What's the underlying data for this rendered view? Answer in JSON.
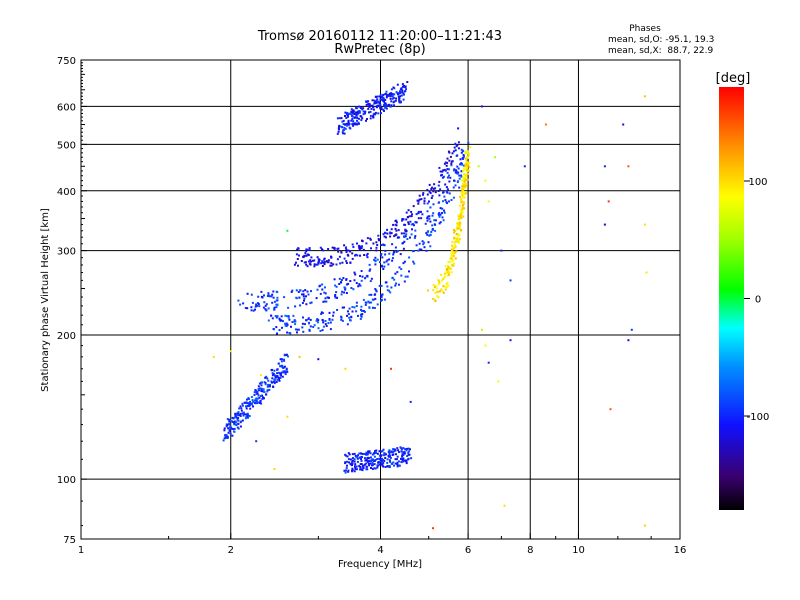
{
  "title": "Tromsø 20160112 11:20:00–11:21:43",
  "subtitle": "RwPretec (8p)",
  "phase_box": {
    "heading": "Phases",
    "line_o": "mean, sd,O: -95.1, 19.3",
    "line_x": "mean, sd,X:  88.7, 22.9"
  },
  "chart_data": {
    "type": "scatter",
    "title": "Tromsø 20160112 11:20:00–11:21:43",
    "subtitle": "RwPretec (8p)",
    "xlabel": "Frequency [MHz]",
    "ylabel": "Stationary phase Virtual Height [km]",
    "x_scale": "log2",
    "y_scale": "log",
    "xlim": [
      1,
      16
    ],
    "ylim": [
      75,
      750
    ],
    "xticks": [
      1,
      2,
      4,
      6,
      8,
      10,
      16
    ],
    "xtick_labels": [
      "1",
      "2",
      "4",
      "6",
      "8",
      "10",
      "16"
    ],
    "yticks": [
      75,
      100,
      200,
      300,
      400,
      500,
      600,
      750
    ],
    "ytick_labels": [
      "75",
      "100",
      "200",
      "300",
      "400",
      "500",
      "600",
      "750"
    ],
    "x_gridlines": [
      2,
      4,
      6,
      8,
      10
    ],
    "y_gridlines": [
      100,
      200,
      300,
      400,
      500,
      600
    ],
    "grid": true,
    "colorbar": {
      "label": "[deg]",
      "range": [
        -180,
        180
      ],
      "ticks": [
        -100,
        0,
        100
      ],
      "tick_labels": [
        "-100",
        "0",
        "100"
      ]
    },
    "traces": [
      {
        "x_range": [
          3.3,
          4.5
        ],
        "h_range": [
          545,
          650
        ],
        "phase": -105,
        "shape": "linear"
      },
      {
        "x_range": [
          2.05,
          6.0
        ],
        "h_range": [
          235,
          500
        ],
        "phase": -95,
        "shape": "cusp"
      },
      {
        "x_range": [
          2.4,
          6.0
        ],
        "h_range": [
          210,
          480
        ],
        "phase": -92,
        "shape": "cusp"
      },
      {
        "x_range": [
          2.7,
          5.8
        ],
        "h_range": [
          290,
          520
        ],
        "phase": -115,
        "shape": "cusp"
      },
      {
        "x_range": [
          4.9,
          6.0
        ],
        "h_range": [
          240,
          480
        ],
        "phase": 95,
        "shape": "steep"
      },
      {
        "x_range": [
          1.95,
          2.6
        ],
        "h_range": [
          125,
          175
        ],
        "phase": -95,
        "shape": "linear"
      },
      {
        "x_range": [
          3.4,
          4.6
        ],
        "h_range": [
          108,
          112
        ],
        "phase": -100,
        "shape": "linear"
      }
    ],
    "scattered_points": [
      {
        "x": 6.3,
        "y": 450,
        "v": 60
      },
      {
        "x": 6.5,
        "y": 420,
        "v": 80
      },
      {
        "x": 6.6,
        "y": 380,
        "v": 90
      },
      {
        "x": 6.8,
        "y": 470,
        "v": 50
      },
      {
        "x": 7.0,
        "y": 300,
        "v": -100
      },
      {
        "x": 7.3,
        "y": 260,
        "v": -90
      },
      {
        "x": 6.4,
        "y": 600,
        "v": -110
      },
      {
        "x": 7.8,
        "y": 450,
        "v": -100
      },
      {
        "x": 8.6,
        "y": 550,
        "v": 140
      },
      {
        "x": 11.3,
        "y": 450,
        "v": -100
      },
      {
        "x": 11.5,
        "y": 380,
        "v": 160
      },
      {
        "x": 11.3,
        "y": 340,
        "v": -120
      },
      {
        "x": 12.6,
        "y": 450,
        "v": 150
      },
      {
        "x": 12.3,
        "y": 550,
        "v": -110
      },
      {
        "x": 13.6,
        "y": 630,
        "v": 110
      },
      {
        "x": 13.6,
        "y": 340,
        "v": 100
      },
      {
        "x": 12.8,
        "y": 205,
        "v": -90
      },
      {
        "x": 13.7,
        "y": 270,
        "v": 95
      },
      {
        "x": 12.6,
        "y": 195,
        "v": -120
      },
      {
        "x": 11.6,
        "y": 140,
        "v": 150
      },
      {
        "x": 7.1,
        "y": 88,
        "v": 100
      },
      {
        "x": 5.1,
        "y": 79,
        "v": 160
      },
      {
        "x": 13.6,
        "y": 80,
        "v": 105
      },
      {
        "x": 6.5,
        "y": 190,
        "v": 90
      },
      {
        "x": 6.6,
        "y": 175,
        "v": -100
      },
      {
        "x": 7.3,
        "y": 195,
        "v": -110
      },
      {
        "x": 6.4,
        "y": 205,
        "v": 60
      },
      {
        "x": 6.9,
        "y": 160,
        "v": 80
      },
      {
        "x": 4.2,
        "y": 170,
        "v": 160
      },
      {
        "x": 4.6,
        "y": 145,
        "v": -100
      },
      {
        "x": 3.4,
        "y": 170,
        "v": 100
      },
      {
        "x": 2.3,
        "y": 165,
        "v": 95
      },
      {
        "x": 2.45,
        "y": 105,
        "v": 100
      },
      {
        "x": 2.6,
        "y": 135,
        "v": 100
      },
      {
        "x": 2.75,
        "y": 180,
        "v": 110
      },
      {
        "x": 3.0,
        "y": 178,
        "v": -110
      },
      {
        "x": 1.85,
        "y": 180,
        "v": 100
      },
      {
        "x": 2.0,
        "y": 185,
        "v": 95
      },
      {
        "x": 2.25,
        "y": 120,
        "v": -90
      },
      {
        "x": 2.6,
        "y": 330,
        "v": 0
      }
    ]
  }
}
